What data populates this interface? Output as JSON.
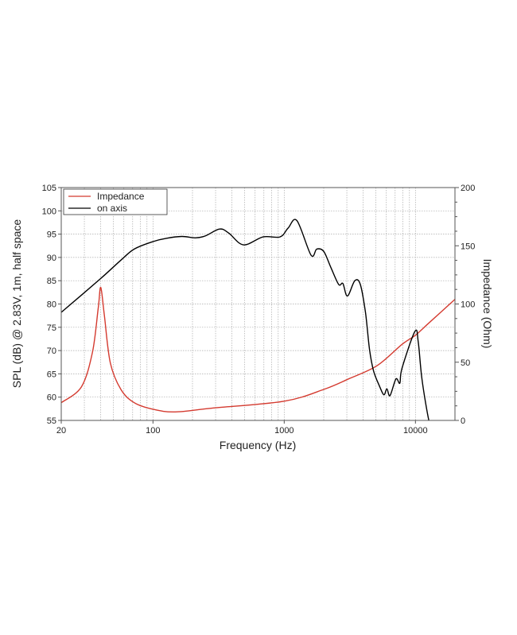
{
  "chart_data": {
    "type": "line",
    "title": "",
    "xlabel": "Frequency (Hz)",
    "ylabel": "SPL (dB) @ 2.83V, 1m, half space",
    "y2label": "Impedance (Ohm)",
    "xscale": "log",
    "xlim": [
      20,
      20000
    ],
    "ylim": [
      55,
      105
    ],
    "y2lim": [
      0,
      200
    ],
    "xticks": [
      20,
      100,
      1000,
      10000
    ],
    "xtick_labels": [
      "20",
      "100",
      "1000",
      "10000"
    ],
    "yticks": [
      55,
      60,
      65,
      70,
      75,
      80,
      85,
      90,
      95,
      100,
      105
    ],
    "ytick_labels": [
      "55",
      "60",
      "65",
      "70",
      "75",
      "80",
      "85",
      "90",
      "95",
      "100",
      "105"
    ],
    "y2ticks": [
      0,
      50,
      100,
      150,
      200
    ],
    "y2tick_labels": [
      "0",
      "50",
      "100",
      "150",
      "200"
    ],
    "grid": true,
    "legend_position": "top-left",
    "series": [
      {
        "name": "Impedance",
        "axis": "right",
        "color": "#d43a2f",
        "x": [
          20,
          28.5,
          34.6,
          38.3,
          40,
          42.6,
          47.3,
          57,
          72,
          100,
          148,
          290,
          1000,
          2000,
          3100,
          5100,
          7900,
          10000,
          12600,
          20000
        ],
        "y": [
          15.2,
          28.9,
          58.7,
          97,
          114.2,
          90.3,
          49.4,
          26.6,
          15.2,
          9.6,
          7.3,
          10.7,
          16.5,
          26.6,
          35.7,
          47,
          65.3,
          73.2,
          83.5,
          104
        ]
      },
      {
        "name": "on axis",
        "axis": "left",
        "color": "#000000",
        "x": [
          20,
          39.7,
          57.4,
          72,
          100,
          126,
          166,
          210,
          250,
          322,
          379,
          489,
          691,
          930,
          1070,
          1250,
          1600,
          1770,
          2000,
          2270,
          2600,
          2800,
          3030,
          3450,
          3800,
          4160,
          4470,
          4800,
          5350,
          5750,
          6060,
          6400,
          7100,
          7600,
          7900,
          9900,
          10500,
          11200,
          12600,
          13200
        ],
        "y": [
          78.2,
          85.4,
          89.5,
          91.8,
          93.4,
          94.1,
          94.5,
          94.2,
          94.6,
          96.1,
          95.2,
          92.7,
          94.4,
          94.4,
          96.3,
          97.9,
          90.5,
          91.8,
          91.3,
          87.8,
          84.2,
          84.4,
          81.7,
          85,
          84.2,
          78.2,
          70.2,
          65.6,
          62.2,
          60.5,
          61.8,
          60.3,
          63.9,
          63,
          66.2,
          74.1,
          71.9,
          63.9,
          55.2,
          54
        ]
      }
    ]
  }
}
